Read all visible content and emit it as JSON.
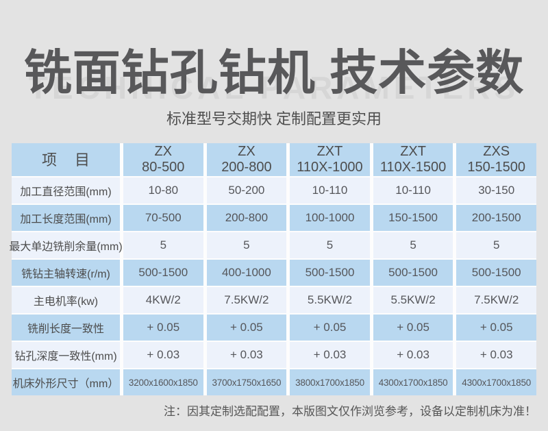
{
  "page": {
    "watermark": "TECHNICAL PARAMETERS",
    "title": "铣面钻孔钻机 技术参数",
    "subtitle": "标准型号交期快 定制配置更实用",
    "footnote": "注：因其定制选配配置，本版图文仅作浏览参考，设备以定制机床为准！"
  },
  "colors": {
    "page_background": "#e3e3e3",
    "table_blue": "#b9d8f0",
    "table_light": "#edf2fb",
    "cell_gap_white": "#fdfdfd",
    "title_gray": "#58585a",
    "watermark_gray": "#d6d6d6",
    "text_gray": "#4c4c4c"
  },
  "table": {
    "item_header": "项 目",
    "columns": [
      {
        "series": "ZX",
        "model": "80-500"
      },
      {
        "series": "ZX",
        "model": "200-800"
      },
      {
        "series": "ZXT",
        "model": "110X-1000"
      },
      {
        "series": "ZXT",
        "model": "110X-1500"
      },
      {
        "series": "ZXS",
        "model": "150-1500"
      }
    ],
    "rows": [
      {
        "label": "加工直径范围(mm)",
        "values": [
          "10-80",
          "50-200",
          "10-110",
          "10-110",
          "30-150"
        ]
      },
      {
        "label": "加工长度范围(mm)",
        "values": [
          "70-500",
          "200-800",
          "100-1000",
          "150-1500",
          "200-1500"
        ]
      },
      {
        "label": "最大单边铣削余量(mm)",
        "values": [
          "5",
          "5",
          "5",
          "5",
          "5"
        ]
      },
      {
        "label": "铣钻主轴转速(r/m)",
        "values": [
          "500-1500",
          "400-1000",
          "500-1500",
          "500-1500",
          "500-1500"
        ]
      },
      {
        "label": "主电机率(kw)",
        "values": [
          "4KW/2",
          "7.5KW/2",
          "5.5KW/2",
          "5.5KW/2",
          "7.5KW/2"
        ]
      },
      {
        "label": "铣削长度一致性",
        "values": [
          "+ 0.05",
          "+ 0.05",
          "+ 0.05",
          "+ 0.05",
          "+ 0.05"
        ]
      },
      {
        "label": "钻孔深度一致性(mm)",
        "values": [
          "+ 0.03",
          "+ 0.03",
          "+ 0.03",
          "+ 0.03",
          "+ 0.03"
        ]
      },
      {
        "label": "机床外形尺寸（mm）",
        "values": [
          "3200x1600x1850",
          "3700x1750x1650",
          "3800x1700x1850",
          "4300x1700x1850",
          "4300x1700x1850"
        ]
      }
    ]
  }
}
